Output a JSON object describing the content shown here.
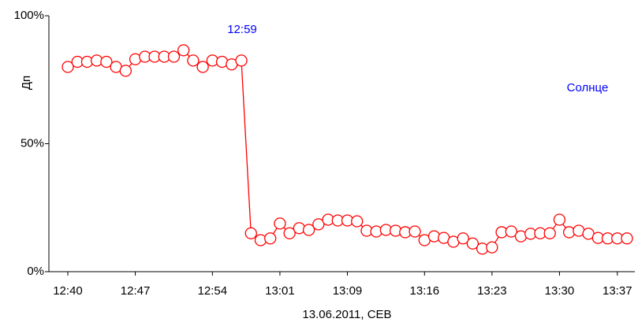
{
  "chart_data": {
    "type": "line",
    "y_label": "Дп",
    "x_label": "13.06.2011, СЕВ",
    "annotations": [
      "12:59",
      "Солнце"
    ],
    "categories": [
      "12:40",
      null,
      null,
      null,
      null,
      null,
      null,
      "12:47",
      null,
      null,
      null,
      null,
      null,
      null,
      null,
      "12:54",
      null,
      null,
      null,
      null,
      null,
      null,
      "13:01",
      null,
      null,
      null,
      null,
      null,
      null,
      "13:09",
      null,
      null,
      null,
      null,
      null,
      null,
      null,
      "13:16",
      null,
      null,
      null,
      null,
      null,
      null,
      "13:23",
      null,
      null,
      null,
      null,
      null,
      null,
      "13:30",
      null,
      null,
      null,
      null,
      null,
      "13:37",
      null
    ],
    "series": [
      {
        "color": "#ff0000",
        "values": [
          80,
          82,
          82,
          82.5,
          82,
          80,
          78.5,
          83,
          84,
          84,
          84,
          84,
          86.5,
          82.5,
          80,
          82.5,
          82,
          81,
          82.5,
          15,
          12.3,
          13,
          18.8,
          15,
          17,
          16.3,
          18.5,
          20.3,
          20,
          20,
          19.7,
          16,
          15.7,
          16.3,
          16,
          15.4,
          15.7,
          12.3,
          13.8,
          13.2,
          11.7,
          13,
          11,
          9,
          9.5,
          15.4,
          15.7,
          13.8,
          14.8,
          15,
          15,
          20.3,
          15.4,
          16,
          14.8,
          13.2,
          13,
          13,
          13
        ]
      }
    ],
    "ylim": [
      0,
      100
    ],
    "yticks": [
      {
        "value": 0,
        "label": "0%"
      },
      {
        "value": 50,
        "label": "50%"
      },
      {
        "value": 100,
        "label": "100%"
      }
    ]
  }
}
